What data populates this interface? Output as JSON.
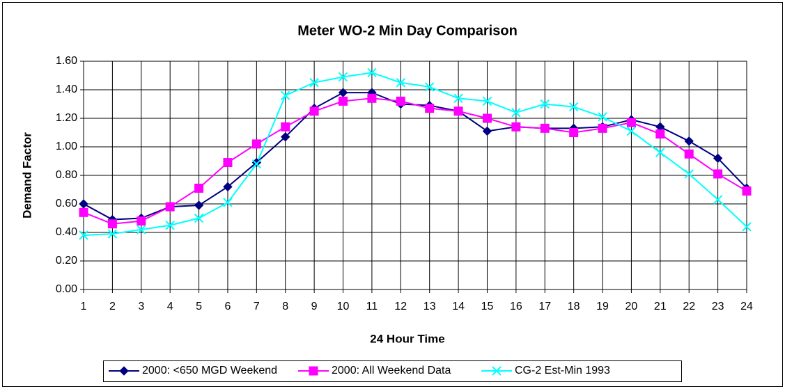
{
  "chart_data": {
    "type": "line",
    "title": "Meter WO-2  Min Day Comparison",
    "x_label": "24 Hour Time",
    "y_label": "Demand Factor",
    "categories": [
      "1",
      "2",
      "3",
      "4",
      "5",
      "6",
      "7",
      "8",
      "9",
      "10",
      "11",
      "12",
      "13",
      "14",
      "15",
      "16",
      "17",
      "18",
      "19",
      "20",
      "21",
      "22",
      "23",
      "24"
    ],
    "ylim": [
      0,
      1.6
    ],
    "yticks": [
      {
        "value": 0,
        "label": "0.00"
      },
      {
        "value": 0.2,
        "label": "0.20"
      },
      {
        "value": 0.4,
        "label": "0.40"
      },
      {
        "value": 0.6,
        "label": "0.60"
      },
      {
        "value": 0.8,
        "label": "0.80"
      },
      {
        "value": 1.0,
        "label": "1.00"
      },
      {
        "value": 1.2,
        "label": "1.20"
      },
      {
        "value": 1.4,
        "label": "1.40"
      },
      {
        "value": 1.6,
        "label": "1.60"
      }
    ],
    "grid": true,
    "legend": "bottom",
    "series": [
      {
        "name": "2000: <650 MGD Weekend",
        "color": "#000080",
        "marker": "diamond",
        "values": [
          0.6,
          0.49,
          0.5,
          0.58,
          0.59,
          0.72,
          0.89,
          1.07,
          1.27,
          1.38,
          1.38,
          1.3,
          1.29,
          1.25,
          1.11,
          1.14,
          1.13,
          1.13,
          1.14,
          1.19,
          1.14,
          1.04,
          0.92,
          0.71
        ]
      },
      {
        "name": "2000: All Weekend Data",
        "color": "#ff00ff",
        "marker": "square",
        "values": [
          0.54,
          0.46,
          0.48,
          0.58,
          0.71,
          0.89,
          1.02,
          1.14,
          1.25,
          1.32,
          1.34,
          1.32,
          1.27,
          1.25,
          1.2,
          1.14,
          1.13,
          1.1,
          1.13,
          1.17,
          1.09,
          0.95,
          0.81,
          0.69
        ]
      },
      {
        "name": "CG-2 Est-Min 1993",
        "color": "#00ffff",
        "marker": "x",
        "values": [
          0.38,
          0.39,
          0.42,
          0.45,
          0.5,
          0.61,
          0.88,
          1.36,
          1.45,
          1.49,
          1.52,
          1.45,
          1.42,
          1.34,
          1.32,
          1.24,
          1.3,
          1.28,
          1.21,
          1.11,
          0.96,
          0.81,
          0.63,
          0.44
        ]
      }
    ]
  }
}
